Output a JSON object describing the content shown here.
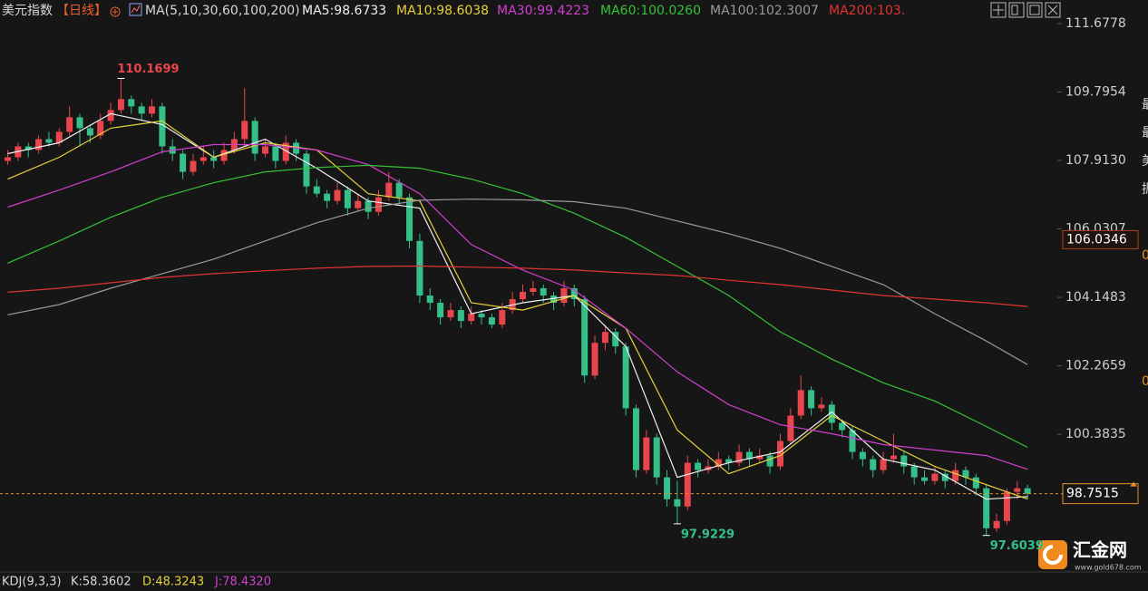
{
  "chart_data": {
    "type": "candlestick",
    "title": "美元指数",
    "period": "【日线】",
    "indicator": "MA(5,10,30,60,100,200)",
    "ylim": [
      96.624,
      112.325
    ],
    "yticks": [
      111.6778,
      109.7954,
      {
        "value": 107.913,
        "label": "107.9130"
      },
      106.0307,
      104.1483,
      102.2659,
      100.3835
    ],
    "up_color": "#e8464c",
    "down_color": "#35c08a",
    "ohlc": [
      [
        107.9,
        108.2,
        107.8,
        108.0
      ],
      [
        108.0,
        108.4,
        107.9,
        108.3
      ],
      [
        108.3,
        108.4,
        108.0,
        108.2
      ],
      [
        108.2,
        108.6,
        108.1,
        108.5
      ],
      [
        108.5,
        108.7,
        108.3,
        108.4
      ],
      [
        108.4,
        108.8,
        108.3,
        108.7
      ],
      [
        108.7,
        109.4,
        108.6,
        109.1
      ],
      [
        109.1,
        109.2,
        108.3,
        108.8
      ],
      [
        108.8,
        108.9,
        108.4,
        108.6
      ],
      [
        108.6,
        109.2,
        108.5,
        109.0
      ],
      [
        109.0,
        109.5,
        108.9,
        109.3
      ],
      [
        109.3,
        110.1699,
        109.2,
        109.6
      ],
      [
        109.6,
        109.7,
        109.2,
        109.4
      ],
      [
        109.4,
        109.5,
        109.0,
        109.2
      ],
      [
        109.2,
        109.6,
        109.1,
        109.4
      ],
      [
        109.4,
        109.5,
        108.1,
        108.3
      ],
      [
        108.3,
        108.5,
        107.9,
        108.1
      ],
      [
        108.1,
        108.2,
        107.4,
        107.6
      ],
      [
        107.6,
        108.1,
        107.5,
        107.9
      ],
      [
        107.9,
        108.3,
        107.8,
        108.0
      ],
      [
        108.0,
        108.2,
        107.7,
        107.9
      ],
      [
        107.9,
        108.4,
        107.8,
        108.2
      ],
      [
        108.2,
        108.7,
        108.1,
        108.5
      ],
      [
        108.5,
        109.9,
        108.3,
        109.0
      ],
      [
        109.0,
        109.1,
        107.9,
        108.1
      ],
      [
        108.1,
        108.5,
        108.0,
        108.3
      ],
      [
        108.3,
        108.4,
        107.7,
        107.9
      ],
      [
        107.9,
        108.6,
        107.8,
        108.4
      ],
      [
        108.4,
        108.5,
        107.9,
        108.1
      ],
      [
        108.1,
        108.2,
        107.0,
        107.2
      ],
      [
        107.2,
        107.4,
        106.9,
        107.0
      ],
      [
        107.0,
        107.1,
        106.6,
        106.8
      ],
      [
        106.8,
        107.3,
        106.7,
        107.1
      ],
      [
        107.1,
        107.2,
        106.4,
        106.6
      ],
      [
        106.6,
        107.0,
        106.5,
        106.8
      ],
      [
        106.8,
        106.9,
        106.3,
        106.5
      ],
      [
        106.5,
        107.1,
        106.4,
        106.9
      ],
      [
        106.9,
        107.6,
        106.8,
        107.3
      ],
      [
        107.3,
        107.4,
        106.7,
        106.9
      ],
      [
        106.9,
        107.0,
        105.5,
        105.7
      ],
      [
        105.7,
        105.9,
        104.0,
        104.2
      ],
      [
        104.2,
        104.4,
        103.8,
        104.0
      ],
      [
        104.0,
        104.1,
        103.4,
        103.6
      ],
      [
        103.6,
        104.0,
        103.5,
        103.8
      ],
      [
        103.8,
        103.9,
        103.3,
        103.5
      ],
      [
        103.5,
        103.9,
        103.4,
        103.7
      ],
      [
        103.7,
        103.8,
        103.4,
        103.6
      ],
      [
        103.6,
        103.7,
        103.3,
        103.4
      ],
      [
        103.4,
        104.0,
        103.3,
        103.8
      ],
      [
        103.8,
        104.3,
        103.7,
        104.1
      ],
      [
        104.1,
        104.5,
        104.0,
        104.3
      ],
      [
        104.3,
        104.6,
        104.2,
        104.4
      ],
      [
        104.4,
        104.5,
        104.0,
        104.2
      ],
      [
        104.2,
        104.3,
        103.8,
        104.0
      ],
      [
        104.0,
        104.6,
        103.9,
        104.4
      ],
      [
        104.4,
        104.5,
        103.9,
        104.1
      ],
      [
        104.1,
        104.2,
        101.8,
        102.0
      ],
      [
        102.0,
        103.1,
        101.9,
        102.9
      ],
      [
        102.9,
        103.4,
        102.7,
        103.2
      ],
      [
        103.2,
        103.3,
        102.6,
        102.8
      ],
      [
        102.8,
        102.9,
        100.9,
        101.1
      ],
      [
        101.1,
        101.2,
        99.2,
        99.4
      ],
      [
        99.4,
        100.5,
        99.3,
        100.3
      ],
      [
        100.3,
        100.4,
        99.0,
        99.2
      ],
      [
        99.2,
        99.4,
        98.4,
        98.6
      ],
      [
        98.6,
        99.1,
        97.9229,
        98.4
      ],
      [
        98.4,
        99.8,
        98.3,
        99.6
      ],
      [
        99.6,
        99.7,
        99.2,
        99.4
      ],
      [
        99.4,
        99.7,
        99.3,
        99.5
      ],
      [
        99.5,
        99.9,
        99.4,
        99.7
      ],
      [
        99.7,
        99.8,
        99.4,
        99.6
      ],
      [
        99.6,
        100.1,
        99.5,
        99.9
      ],
      [
        99.9,
        100.0,
        99.5,
        99.7
      ],
      [
        99.7,
        100.0,
        99.6,
        99.8
      ],
      [
        99.8,
        99.9,
        99.3,
        99.5
      ],
      [
        99.5,
        100.4,
        99.4,
        100.2
      ],
      [
        100.2,
        101.1,
        100.1,
        100.9
      ],
      [
        100.9,
        102.0,
        100.8,
        101.6
      ],
      [
        101.6,
        101.7,
        100.9,
        101.1
      ],
      [
        101.1,
        101.4,
        101.0,
        101.2
      ],
      [
        101.2,
        101.3,
        100.5,
        100.7
      ],
      [
        100.7,
        100.8,
        100.3,
        100.5
      ],
      [
        100.5,
        100.6,
        99.7,
        99.9
      ],
      [
        99.9,
        100.0,
        99.5,
        99.7
      ],
      [
        99.7,
        99.8,
        99.2,
        99.4
      ],
      [
        99.4,
        99.9,
        99.3,
        99.7
      ],
      [
        99.7,
        100.4,
        99.6,
        99.8
      ],
      [
        99.8,
        99.9,
        99.3,
        99.5
      ],
      [
        99.5,
        99.6,
        99.0,
        99.2
      ],
      [
        99.2,
        99.4,
        99.0,
        99.1
      ],
      [
        99.1,
        99.5,
        99.0,
        99.3
      ],
      [
        99.3,
        99.4,
        98.9,
        99.1
      ],
      [
        99.1,
        99.6,
        99.0,
        99.4
      ],
      [
        99.4,
        99.5,
        99.0,
        99.2
      ],
      [
        99.2,
        99.3,
        98.7,
        98.9
      ],
      [
        98.9,
        99.0,
        97.6039,
        97.8
      ],
      [
        97.8,
        98.2,
        97.7,
        98.0
      ],
      [
        98.0,
        98.9,
        97.9,
        98.8
      ],
      [
        98.8,
        99.1,
        98.6,
        98.9
      ],
      [
        98.9,
        99.0,
        98.6,
        98.7515
      ]
    ],
    "ma_x": [
      0,
      5,
      10,
      15,
      20,
      25,
      30,
      35,
      40,
      45,
      50,
      55,
      60,
      65,
      70,
      75,
      80,
      85,
      90,
      95,
      99
    ],
    "series": [
      {
        "name": "MA5:98.6733",
        "color": "#f0f0f0",
        "values": [
          108.1,
          108.4,
          109.2,
          108.9,
          108.0,
          108.5,
          107.7,
          106.8,
          106.6,
          103.7,
          104.0,
          104.2,
          102.8,
          99.2,
          99.6,
          99.9,
          101.0,
          99.7,
          99.4,
          98.6,
          98.6733
        ]
      },
      {
        "name": "MA10:98.6038",
        "color": "#e6d23a",
        "values": [
          107.4,
          108.0,
          108.8,
          109.0,
          108.0,
          108.4,
          108.2,
          107.0,
          106.8,
          104.0,
          103.8,
          104.2,
          103.3,
          100.5,
          99.3,
          99.8,
          100.9,
          100.2,
          99.5,
          99.0,
          98.6038
        ]
      },
      {
        "name": "MA30:99.4223",
        "color": "#d23fd0",
        "values": [
          106.63,
          107.1,
          107.6,
          108.15,
          108.35,
          108.35,
          108.2,
          107.8,
          107.0,
          105.6,
          104.9,
          104.35,
          103.3,
          102.1,
          101.2,
          100.65,
          100.4,
          100.1,
          99.95,
          99.8,
          99.4223
        ]
      },
      {
        "name": "MA60:100.0260",
        "color": "#36c236",
        "values": [
          105.09,
          105.7,
          106.35,
          106.9,
          107.3,
          107.6,
          107.72,
          107.78,
          107.7,
          107.4,
          107.0,
          106.46,
          105.8,
          105.0,
          104.2,
          103.2,
          102.45,
          101.8,
          101.3,
          100.6,
          100.026
        ]
      },
      {
        "name": "MA100:102.3007",
        "color": "#9a9a9a",
        "values": [
          103.67,
          103.95,
          104.4,
          104.8,
          105.2,
          105.7,
          106.2,
          106.6,
          106.82,
          106.85,
          106.83,
          106.78,
          106.6,
          106.25,
          105.9,
          105.5,
          105.0,
          104.5,
          103.7,
          102.95,
          102.3007
        ]
      },
      {
        "name": "MA200:103.",
        "color": "#e03434",
        "values": [
          104.29,
          104.4,
          104.55,
          104.7,
          104.8,
          104.88,
          104.95,
          105.0,
          105.01,
          104.98,
          104.95,
          104.9,
          104.82,
          104.75,
          104.62,
          104.5,
          104.35,
          104.2,
          104.1,
          104.0,
          103.9
        ]
      }
    ],
    "last_price": 98.7515,
    "cursor_price": 106.0346,
    "kdj": {
      "label": "KDJ(9,3,3)",
      "k": "K:58.3602",
      "d": "D:48.3243",
      "j": "J:78.4320"
    },
    "side_texts": [
      "最",
      "最",
      "美",
      "振"
    ],
    "side_zeros": [
      "0",
      "0"
    ],
    "logo": {
      "name": "汇金网",
      "url": "www.gold678.com"
    }
  }
}
